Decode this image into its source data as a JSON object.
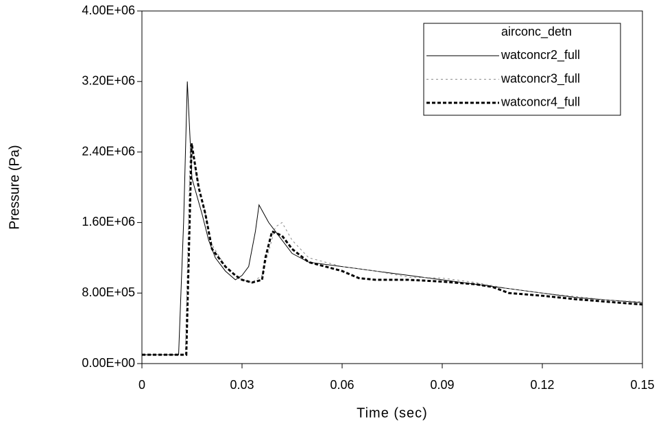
{
  "chart_data": {
    "type": "line",
    "xlabel": "Time (sec)",
    "ylabel": "Pressure (Pa)",
    "xlim": [
      0,
      0.15
    ],
    "xticks": [
      0,
      0.03,
      0.06,
      0.09,
      0.12,
      0.15
    ],
    "ylim": [
      0,
      4000000
    ],
    "yticks": [
      {
        "value": 0,
        "label": "0.00E+00"
      },
      {
        "value": 800000,
        "label": "8.00E+05"
      },
      {
        "value": 1600000,
        "label": "1.60E+06"
      },
      {
        "value": 2400000,
        "label": "2.40E+06"
      },
      {
        "value": 3200000,
        "label": "3.20E+06"
      },
      {
        "value": 4000000,
        "label": "4.00E+06"
      }
    ],
    "grid": false,
    "legend": "upper right",
    "series": [
      {
        "name": "airconc_detn",
        "color": "#ffffff",
        "style": "solid",
        "x": [
          0,
          0.011,
          0.0125,
          0.0136,
          0.015,
          0.018,
          0.02,
          0.022,
          0.025,
          0.028,
          0.03,
          0.032,
          0.034,
          0.0351,
          0.038,
          0.04,
          0.045,
          0.05,
          0.06,
          0.07,
          0.08,
          0.09,
          0.1,
          0.11,
          0.12,
          0.13,
          0.14,
          0.15
        ],
        "values": [
          100000,
          100000,
          1600000,
          3200000,
          2100000,
          1700000,
          1400000,
          1200000,
          1050000,
          950000,
          1000000,
          1100000,
          1500000,
          1800000,
          1600000,
          1500000,
          1250000,
          1150000,
          1100000,
          1050000,
          1000000,
          950000,
          900000,
          850000,
          800000,
          750000,
          720000,
          690000
        ]
      },
      {
        "name": "watconcr2_full",
        "color": "#000000",
        "style": "solid",
        "x": [
          0,
          0.011,
          0.0125,
          0.0136,
          0.015,
          0.018,
          0.02,
          0.022,
          0.025,
          0.028,
          0.03,
          0.032,
          0.034,
          0.0351,
          0.038,
          0.04,
          0.045,
          0.05,
          0.06,
          0.07,
          0.08,
          0.09,
          0.1,
          0.11,
          0.12,
          0.13,
          0.14,
          0.15
        ],
        "values": [
          100000,
          100000,
          1600000,
          3200000,
          2100000,
          1700000,
          1400000,
          1200000,
          1050000,
          950000,
          1000000,
          1100000,
          1500000,
          1800000,
          1600000,
          1500000,
          1250000,
          1150000,
          1100000,
          1050000,
          1000000,
          950000,
          900000,
          850000,
          800000,
          750000,
          720000,
          690000
        ]
      },
      {
        "name": "watconcr3_full",
        "color": "#888888",
        "style": "dotted",
        "x": [
          0,
          0.013,
          0.0145,
          0.016,
          0.019,
          0.021,
          0.025,
          0.028,
          0.03,
          0.033,
          0.036,
          0.04,
          0.042,
          0.045,
          0.05,
          0.06,
          0.07,
          0.08,
          0.09,
          0.1,
          0.11,
          0.12,
          0.13,
          0.14,
          0.15
        ],
        "values": [
          100000,
          100000,
          2500000,
          2200000,
          1700000,
          1350000,
          1100000,
          1000000,
          950000,
          920000,
          1000000,
          1550000,
          1600000,
          1400000,
          1200000,
          1100000,
          1050000,
          980000,
          970000,
          920000,
          850000,
          800000,
          760000,
          720000,
          700000
        ]
      },
      {
        "name": "watconcr4_full",
        "color": "#000000",
        "style": "dashed",
        "x": [
          0,
          0.0133,
          0.0149,
          0.017,
          0.019,
          0.021,
          0.025,
          0.028,
          0.03,
          0.033,
          0.036,
          0.037,
          0.039,
          0.042,
          0.045,
          0.05,
          0.055,
          0.06,
          0.065,
          0.07,
          0.08,
          0.09,
          0.1,
          0.105,
          0.11,
          0.12,
          0.13,
          0.14,
          0.15
        ],
        "values": [
          100000,
          100000,
          2500000,
          2000000,
          1700000,
          1300000,
          1100000,
          1000000,
          950000,
          920000,
          950000,
          1200000,
          1500000,
          1450000,
          1300000,
          1150000,
          1100000,
          1050000,
          970000,
          950000,
          950000,
          930000,
          900000,
          870000,
          800000,
          770000,
          730000,
          700000,
          670000
        ]
      }
    ]
  }
}
